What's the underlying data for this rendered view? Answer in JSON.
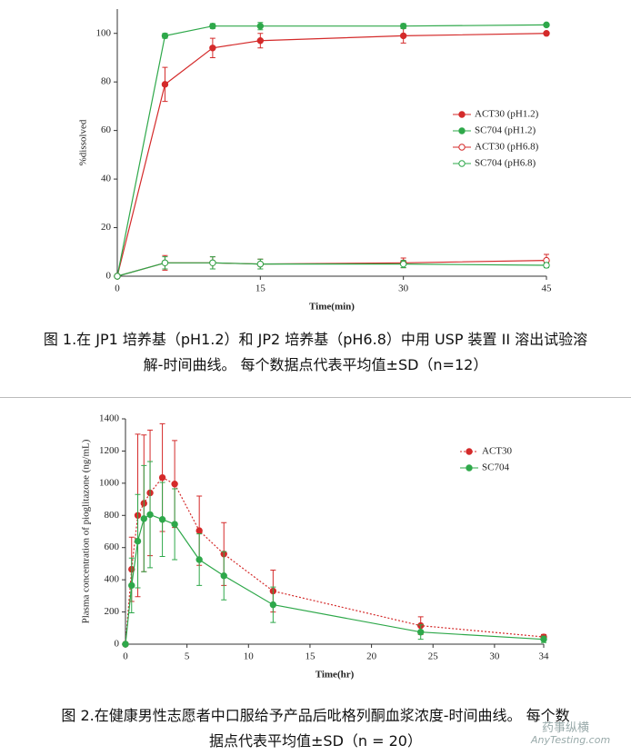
{
  "chart_data": [
    {
      "type": "line",
      "xlabel": "Time(min)",
      "ylabel": "%dissolved",
      "x": [
        0,
        5,
        10,
        15,
        30,
        45
      ],
      "xlim": [
        0,
        45
      ],
      "xticks": [
        0,
        15,
        30,
        45
      ],
      "ylim": [
        0,
        110
      ],
      "yticks": [
        0,
        20,
        40,
        60,
        80,
        100
      ],
      "legend": "right",
      "series": [
        {
          "name": "ACT30 (pH1.2)",
          "color": "#d42a2a",
          "marker": "filled",
          "linestyle": "solid",
          "values": [
            0,
            79,
            94,
            97,
            99,
            100
          ],
          "errors": [
            0,
            7,
            4,
            3,
            3,
            0
          ]
        },
        {
          "name": "SC704  (pH1.2)",
          "color": "#2ea84a",
          "marker": "filled",
          "linestyle": "solid",
          "values": [
            0,
            99,
            103,
            103,
            103,
            103.5
          ],
          "errors": [
            0,
            1,
            1,
            1.5,
            1,
            0.5
          ]
        },
        {
          "name": "ACT30 (pH6.8)",
          "color": "#d42a2a",
          "marker": "open",
          "linestyle": "solid",
          "values": [
            0,
            5.5,
            5.5,
            5,
            5.5,
            6.5
          ],
          "errors": [
            0,
            3,
            2.5,
            2,
            2,
            2.5
          ]
        },
        {
          "name": "SC704  (pH6.8)",
          "color": "#2ea84a",
          "marker": "open",
          "linestyle": "solid",
          "values": [
            0,
            5.5,
            5.5,
            5,
            5,
            4.5
          ],
          "errors": [
            0,
            2.5,
            2.5,
            2,
            1.5,
            1
          ]
        }
      ],
      "caption": [
        "图 1.在 JP1 培养基（pH1.2）和 JP2 培养基（pH6.8）中用 USP 装置 II 溶出试验溶",
        "解-时间曲线。 每个数据点代表平均值±SD（n=12）"
      ]
    },
    {
      "type": "line",
      "xlabel": "Time(hr)",
      "ylabel": "Plasma concentration of pioglitazone (ng/mL)",
      "x": [
        0,
        0.5,
        1,
        1.5,
        2,
        3,
        4,
        6,
        8,
        12,
        24,
        34
      ],
      "xlim": [
        0,
        34
      ],
      "xticks": [
        0,
        5,
        10,
        15,
        20,
        25,
        30,
        34
      ],
      "ylim": [
        0,
        1400
      ],
      "yticks": [
        0,
        200,
        400,
        600,
        800,
        1000,
        1200,
        1400
      ],
      "legend": "right",
      "series": [
        {
          "name": "ACT30",
          "color": "#d42a2a",
          "marker": "filled",
          "linestyle": "dotted",
          "values": [
            0,
            465,
            800,
            875,
            940,
            1035,
            995,
            705,
            560,
            330,
            115,
            45
          ],
          "errors": [
            0,
            200,
            505,
            425,
            390,
            335,
            270,
            215,
            195,
            130,
            55,
            15
          ]
        },
        {
          "name": "SC704",
          "color": "#2ea84a",
          "marker": "filled",
          "linestyle": "solid",
          "values": [
            0,
            365,
            640,
            780,
            805,
            775,
            745,
            525,
            425,
            245,
            75,
            30
          ],
          "errors": [
            0,
            170,
            290,
            330,
            330,
            230,
            220,
            160,
            150,
            110,
            45,
            20
          ]
        }
      ],
      "caption": [
        "图 2.在健康男性志愿者中口服给予产品后吡格列酮血浆浓度-时间曲线。 每个数",
        "据点代表平均值±SD（n = 20）"
      ]
    }
  ],
  "watermark": [
    "药事纵横",
    "AnyTesting.com"
  ]
}
